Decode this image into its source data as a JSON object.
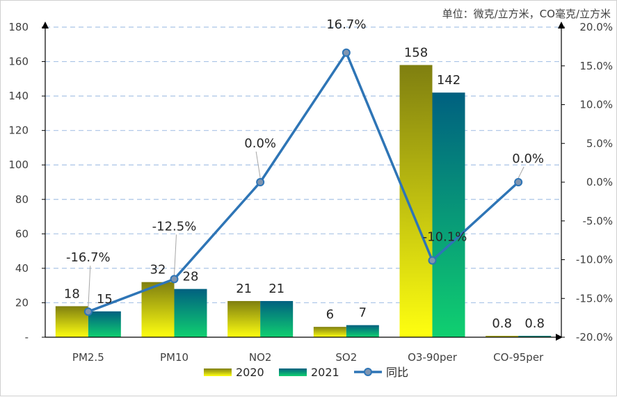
{
  "chart_data": {
    "type": "bar",
    "unit_note": "单位：微克/立方米，CO毫克/立方米",
    "categories": [
      "PM2.5",
      "PM10",
      "NO2",
      "SO2",
      "O3-90per",
      "CO-95per"
    ],
    "series": [
      {
        "name": "2020",
        "kind": "bar",
        "values": [
          18,
          32,
          21,
          6,
          158,
          0.8
        ],
        "labels": [
          "18",
          "32",
          "21",
          "6",
          "158",
          "0.8"
        ]
      },
      {
        "name": "2021",
        "kind": "bar",
        "values": [
          15,
          28,
          21,
          7,
          142,
          0.8
        ],
        "labels": [
          "15",
          "28",
          "21",
          "7",
          "142",
          "0.8"
        ]
      },
      {
        "name": "同比",
        "kind": "line",
        "axis": "right",
        "values": [
          -16.7,
          -12.5,
          0.0,
          16.7,
          -10.1,
          0.0
        ],
        "labels": [
          "-16.7%",
          "-12.5%",
          "0.0%",
          "16.7%",
          "-10.1%",
          "0.0%"
        ]
      }
    ],
    "y_left": {
      "ylim": [
        0,
        180
      ],
      "ticks": [
        "-",
        "20",
        "40",
        "60",
        "80",
        "100",
        "120",
        "140",
        "160",
        "180"
      ]
    },
    "y_right": {
      "ylim": [
        -20,
        20
      ],
      "ticks": [
        "-20.0%",
        "-15.0%",
        "-10.0%",
        "-5.0%",
        "0.0%",
        "5.0%",
        "10.0%",
        "15.0%",
        "20.0%"
      ]
    },
    "grid": true,
    "legend_position": "bottom-center",
    "colors": {
      "bar2020_top": "#7f7f10",
      "bar2020_bottom": "#ffff10",
      "bar2021_top": "#006080",
      "bar2021_bottom": "#10d070",
      "line": "#2e75b6",
      "marker_fill": "#8095b0",
      "grid": "#a9c4e6",
      "axis": "#000000"
    }
  }
}
